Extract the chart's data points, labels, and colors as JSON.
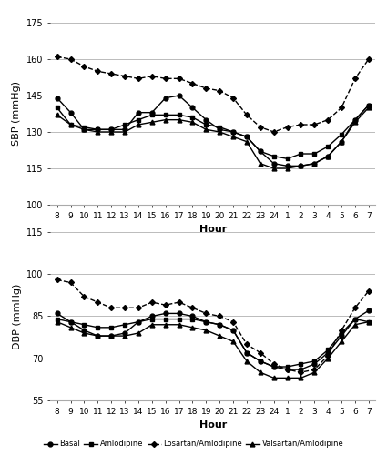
{
  "hours": [
    8,
    9,
    10,
    11,
    12,
    13,
    14,
    15,
    16,
    17,
    18,
    19,
    20,
    21,
    22,
    23,
    24,
    1,
    2,
    3,
    4,
    5,
    6,
    7
  ],
  "sbp": {
    "Basal": [
      144,
      138,
      131,
      131,
      131,
      131,
      138,
      138,
      144,
      145,
      140,
      135,
      131,
      130,
      128,
      122,
      117,
      116,
      116,
      117,
      120,
      126,
      135,
      141
    ],
    "Amlodipine": [
      140,
      133,
      132,
      131,
      131,
      133,
      135,
      137,
      137,
      137,
      136,
      133,
      132,
      130,
      128,
      122,
      120,
      119,
      121,
      121,
      124,
      129,
      135,
      141
    ],
    "Losartan/Amlodipine": [
      161,
      160,
      157,
      155,
      154,
      153,
      152,
      153,
      152,
      152,
      150,
      148,
      147,
      144,
      137,
      132,
      130,
      132,
      133,
      133,
      135,
      140,
      152,
      160
    ],
    "Valsartan/Amlodipine": [
      137,
      133,
      131,
      130,
      130,
      130,
      133,
      134,
      135,
      135,
      134,
      131,
      130,
      128,
      126,
      117,
      115,
      115,
      116,
      117,
      120,
      126,
      134,
      140
    ]
  },
  "dbp": {
    "Basal": [
      86,
      83,
      80,
      78,
      78,
      79,
      83,
      85,
      86,
      86,
      85,
      83,
      82,
      80,
      72,
      69,
      67,
      66,
      66,
      68,
      72,
      78,
      84,
      87
    ],
    "Amlodipine": [
      84,
      83,
      82,
      81,
      81,
      82,
      83,
      84,
      84,
      84,
      84,
      83,
      82,
      80,
      72,
      69,
      67,
      67,
      68,
      69,
      73,
      79,
      84,
      83
    ],
    "Losartan/Amlodipine": [
      98,
      97,
      92,
      90,
      88,
      88,
      88,
      90,
      89,
      90,
      88,
      86,
      85,
      83,
      75,
      72,
      68,
      66,
      65,
      66,
      71,
      80,
      88,
      94
    ],
    "Valsartan/Amlodipine": [
      83,
      81,
      79,
      78,
      78,
      78,
      79,
      82,
      82,
      82,
      81,
      80,
      78,
      76,
      69,
      65,
      63,
      63,
      63,
      65,
      70,
      76,
      82,
      83
    ]
  },
  "sbp_ylim": [
    100,
    175
  ],
  "sbp_yticks": [
    100,
    115,
    130,
    145,
    160,
    175
  ],
  "dbp_ylim": [
    55,
    115
  ],
  "dbp_yticks": [
    55,
    70,
    85,
    100,
    115
  ],
  "styles": {
    "Basal": {
      "color": "black",
      "linestyle": "-",
      "marker": "o",
      "markersize": 3.5,
      "linewidth": 1.0,
      "markerfacecolor": "black"
    },
    "Amlodipine": {
      "color": "black",
      "linestyle": "-",
      "marker": "s",
      "markersize": 3.5,
      "linewidth": 1.0,
      "markerfacecolor": "black"
    },
    "Losartan/Amlodipine": {
      "color": "black",
      "linestyle": "--",
      "marker": "D",
      "markersize": 3.0,
      "linewidth": 1.0,
      "markerfacecolor": "black"
    },
    "Valsartan/Amlodipine": {
      "color": "black",
      "linestyle": "-",
      "marker": "^",
      "markersize": 3.5,
      "linewidth": 1.0,
      "markerfacecolor": "black"
    }
  },
  "legend_labels": [
    "Basal",
    "Amlodipine",
    "Losartan/Amlodipine",
    "Valsartan/Amlodipine"
  ],
  "xlabel": "Hour",
  "sbp_ylabel": "SBP (mmHg)",
  "dbp_ylabel": "DBP (mmHg)",
  "background_color": "#ffffff",
  "grid_color": "#bbbbbb"
}
